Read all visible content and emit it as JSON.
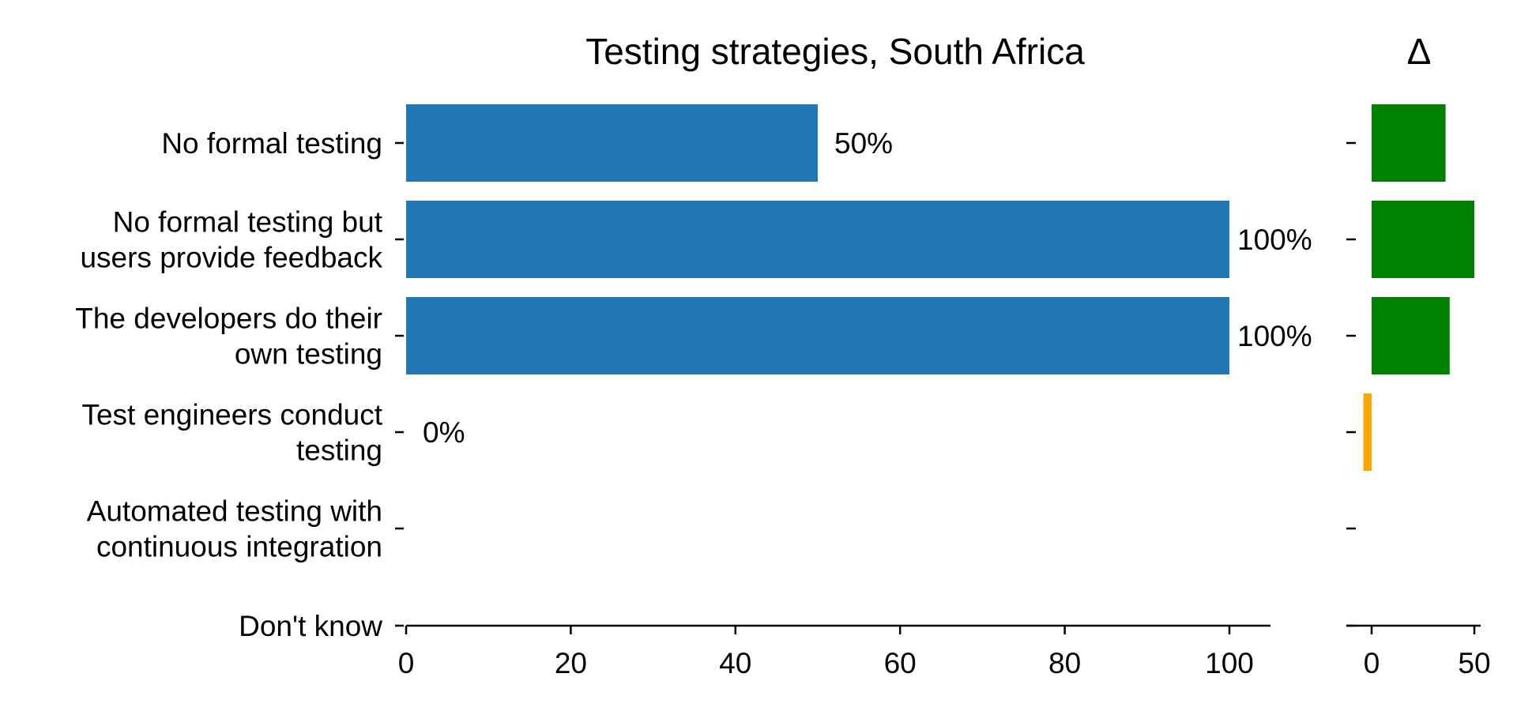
{
  "chart_data": [
    {
      "type": "bar",
      "orientation": "horizontal",
      "title": "Testing strategies, South Africa",
      "categories": [
        "No formal testing",
        "No formal testing but users provide feedback",
        "The developers do their own testing",
        "Test engineers conduct testing",
        "Automated testing with continuous integration",
        "Don't know"
      ],
      "category_lines": [
        [
          "No formal testing"
        ],
        [
          "No formal testing but",
          "users provide feedback"
        ],
        [
          "The developers do their",
          "own testing"
        ],
        [
          "Test engineers conduct",
          "testing"
        ],
        [
          "Automated testing with",
          "continuous integration"
        ],
        [
          "Don't know"
        ]
      ],
      "values": [
        50,
        100,
        100,
        0,
        null,
        null
      ],
      "data_labels": [
        "50%",
        "100%",
        "100%",
        "0%",
        "",
        ""
      ],
      "xlim": [
        0,
        105
      ],
      "xticks": [
        0,
        20,
        40,
        60,
        80,
        100
      ],
      "xtick_labels": [
        "0",
        "20",
        "40",
        "60",
        "80",
        "100"
      ],
      "bar_color": "#2077b4",
      "grid": false
    },
    {
      "type": "bar",
      "orientation": "horizontal",
      "title": "Δ",
      "values": [
        36,
        50,
        38,
        -4,
        null,
        null
      ],
      "xlim": [
        -5,
        53
      ],
      "xticks": [
        0,
        50
      ],
      "xtick_labels": [
        "0",
        "50"
      ],
      "positive_color": "#008000",
      "negative_color": "#ffa500",
      "grid": false
    }
  ]
}
